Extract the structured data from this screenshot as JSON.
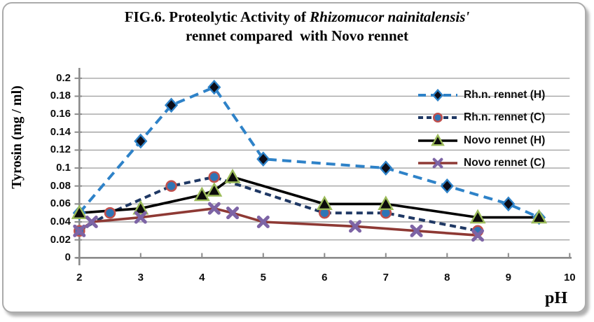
{
  "title": {
    "line1_prefix": "FIG.6. Proteolytic Activity of ",
    "line1_italic": "Rhizomucor nainitalensis'",
    "line2": "rennet compared  with Novo rennet"
  },
  "axes": {
    "y_title": "Tyrosin (mg / ml)",
    "x_title": "pH",
    "y_ticks": [
      "0.2",
      "0.18",
      "0.16",
      "0.14",
      "0.12",
      "0.1",
      "0.08",
      "0.06",
      "0.04",
      "0.02",
      "0"
    ],
    "x_ticks": [
      "2",
      "3",
      "4",
      "5",
      "6",
      "7",
      "8",
      "9",
      "10"
    ]
  },
  "chart_data": {
    "type": "line",
    "title": "FIG.6. Proteolytic Activity of Rhizomucor nainitalensis' rennet compared with Novo rennet",
    "xlabel": "pH",
    "ylabel": "Tyrosin (mg / ml)",
    "xlim": [
      2,
      10
    ],
    "ylim": [
      0,
      0.2
    ],
    "grid": "horizontal",
    "legend_position": "upper-right-inside",
    "gridline_color": "#A4A4A4",
    "axis_color": "#8A8A8A",
    "series": [
      {
        "name": "Rh.n. rennet (H)",
        "line_style": "dashed",
        "dash": "13 8",
        "marker": "diamond",
        "line_color": "#2E82C8",
        "marker_fill": "#0D0D18",
        "marker_edge": "#2E82C8",
        "points": [
          [
            2,
            0.05
          ],
          [
            3,
            0.13
          ],
          [
            3.5,
            0.17
          ],
          [
            4.2,
            0.19
          ],
          [
            5,
            0.11
          ],
          [
            7,
            0.1
          ],
          [
            8,
            0.08
          ],
          [
            9,
            0.06
          ],
          [
            9.5,
            0.045
          ]
        ]
      },
      {
        "name": "Rh.n. rennet (C)",
        "line_style": "dashed",
        "dash": "9 6",
        "marker": "circle",
        "line_color": "#1F3864",
        "marker_fill": "#2E75B6",
        "marker_edge": "#C0504D",
        "points": [
          [
            2,
            0.03
          ],
          [
            2.5,
            0.05
          ],
          [
            3.5,
            0.08
          ],
          [
            4.2,
            0.09
          ],
          [
            6,
            0.05
          ],
          [
            7,
            0.05
          ],
          [
            8.5,
            0.03
          ]
        ]
      },
      {
        "name": "Novo rennet (H)",
        "line_style": "solid",
        "dash": "",
        "marker": "triangle",
        "line_color": "#000000",
        "marker_fill": "#0B0B0B",
        "marker_edge": "#9BBB59",
        "points": [
          [
            2,
            0.05
          ],
          [
            3,
            0.055
          ],
          [
            4,
            0.07
          ],
          [
            4.2,
            0.075
          ],
          [
            4.5,
            0.09
          ],
          [
            6,
            0.06
          ],
          [
            7,
            0.06
          ],
          [
            8.5,
            0.045
          ],
          [
            9.5,
            0.045
          ]
        ]
      },
      {
        "name": "Novo rennet (C)",
        "line_style": "solid",
        "dash": "",
        "marker": "x",
        "line_color": "#8E3934",
        "marker_fill": "#7D64A5",
        "marker_edge": "#7D64A5",
        "points": [
          [
            2,
            0.03
          ],
          [
            2.2,
            0.04
          ],
          [
            3,
            0.045
          ],
          [
            4.2,
            0.055
          ],
          [
            4.5,
            0.05
          ],
          [
            5,
            0.04
          ],
          [
            6.5,
            0.035
          ],
          [
            7.5,
            0.03
          ],
          [
            8.5,
            0.025
          ]
        ]
      }
    ]
  }
}
